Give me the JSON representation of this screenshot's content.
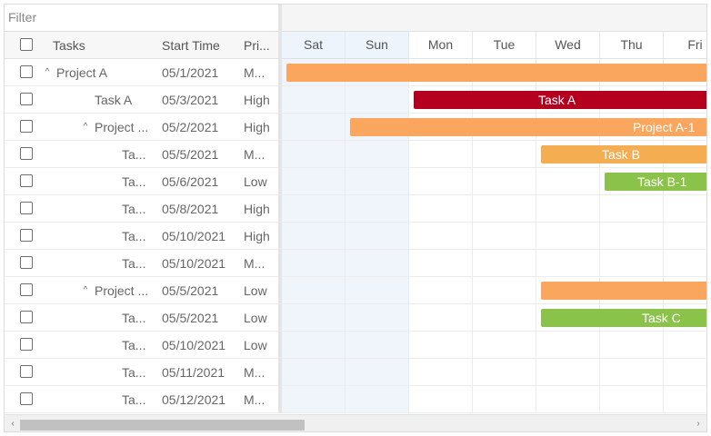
{
  "filter": {
    "placeholder": "Filter"
  },
  "columns": {
    "tasks": "Tasks",
    "start": "Start Time",
    "priority": "Pri..."
  },
  "rows": [
    {
      "name": "Project A",
      "start": "05/1/2021",
      "priority": "M...",
      "level": 0,
      "expander": "^"
    },
    {
      "name": "Task A",
      "start": "05/3/2021",
      "priority": "High",
      "level": 1,
      "expander": ""
    },
    {
      "name": "Project ...",
      "start": "05/2/2021",
      "priority": "High",
      "level": 1,
      "expander": "^"
    },
    {
      "name": "Ta...",
      "start": "05/5/2021",
      "priority": "M...",
      "level": 2,
      "expander": ""
    },
    {
      "name": "Ta...",
      "start": "05/6/2021",
      "priority": "Low",
      "level": 2,
      "expander": ""
    },
    {
      "name": "Ta...",
      "start": "05/8/2021",
      "priority": "High",
      "level": 2,
      "expander": ""
    },
    {
      "name": "Ta...",
      "start": "05/10/2021",
      "priority": "High",
      "level": 2,
      "expander": ""
    },
    {
      "name": "Ta...",
      "start": "05/10/2021",
      "priority": "M...",
      "level": 2,
      "expander": ""
    },
    {
      "name": "Project ...",
      "start": "05/5/2021",
      "priority": "Low",
      "level": 1,
      "expander": "^"
    },
    {
      "name": "Ta...",
      "start": "05/5/2021",
      "priority": "Low",
      "level": 2,
      "expander": ""
    },
    {
      "name": "Ta...",
      "start": "05/10/2021",
      "priority": "Low",
      "level": 2,
      "expander": ""
    },
    {
      "name": "Ta...",
      "start": "05/11/2021",
      "priority": "M...",
      "level": 2,
      "expander": ""
    },
    {
      "name": "Ta...",
      "start": "05/12/2021",
      "priority": "M...",
      "level": 2,
      "expander": ""
    }
  ],
  "days": [
    {
      "label": "Sat",
      "weekend": true
    },
    {
      "label": "Sun",
      "weekend": true
    },
    {
      "label": "Mon",
      "weekend": false
    },
    {
      "label": "Tue",
      "weekend": false
    },
    {
      "label": "Wed",
      "weekend": false
    },
    {
      "label": "Thu",
      "weekend": false
    },
    {
      "label": "Fri",
      "weekend": false
    }
  ],
  "bars": [
    {
      "row": 0,
      "start_day": 0,
      "label": "",
      "color": "#fba65e"
    },
    {
      "row": 1,
      "start_day": 2,
      "label": "Task A",
      "color": "#b4001e"
    },
    {
      "row": 2,
      "start_day": 1,
      "label": "Project A-1",
      "color": "#fba65e"
    },
    {
      "row": 3,
      "start_day": 4,
      "label": "Task B",
      "color": "#f5ad52"
    },
    {
      "row": 4,
      "start_day": 5,
      "label": "Task B-1",
      "color": "#8bc34a"
    },
    {
      "row": 8,
      "start_day": 4,
      "label": "",
      "color": "#fba65e"
    },
    {
      "row": 9,
      "start_day": 4,
      "label": "Task C",
      "color": "#8bc34a"
    }
  ],
  "colors": {
    "accent_orange": "#fba65e",
    "task_red": "#b4001e",
    "task_green": "#8bc34a",
    "weekend": "#eef4fc"
  },
  "scroll": {
    "left_arrow": "‹",
    "right_arrow": "›"
  }
}
